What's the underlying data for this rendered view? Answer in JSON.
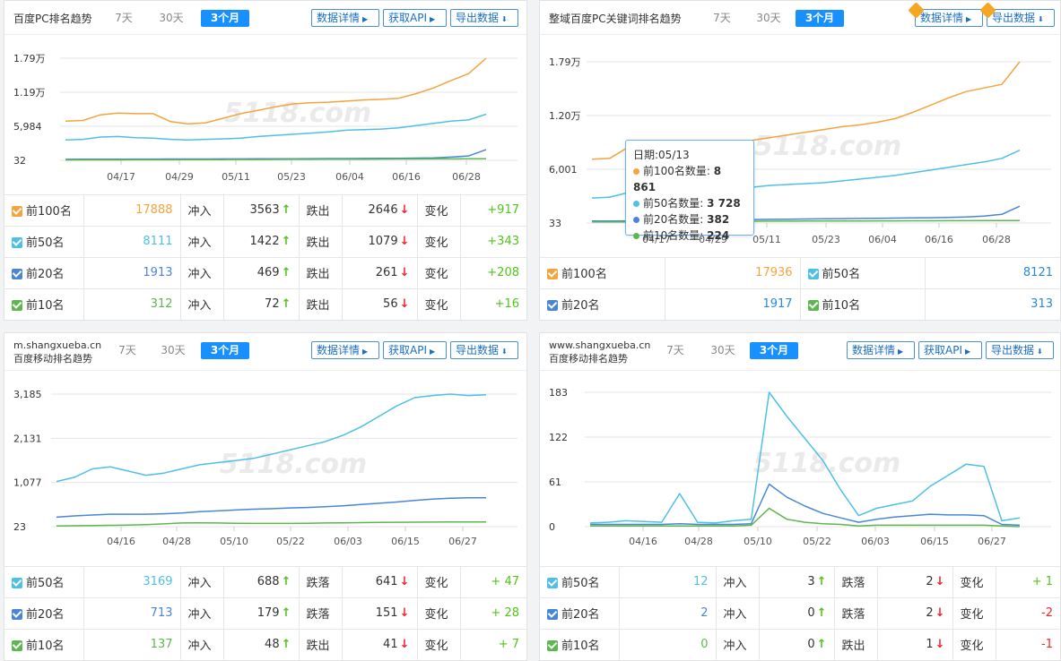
{
  "colors": {
    "top100": "#f5a33c",
    "top50": "#4ec0e6",
    "top20": "#4a86d8",
    "top10": "#5cb84e",
    "accent": "#1890ff"
  },
  "common": {
    "tabs": [
      "7天",
      "30天",
      "3个月"
    ],
    "btn_detail": "数据详情",
    "btn_api": "获取API",
    "btn_export": "导出数据",
    "watermark": "5118.com"
  },
  "panels": {
    "p1": {
      "title": "百度PC排名趋势",
      "rows": [
        {
          "label": "前100名",
          "value": "17888",
          "in_label": "冲入",
          "in": "3563",
          "out_label": "跌出",
          "out": "2646",
          "chg_label": "变化",
          "chg": "+917"
        },
        {
          "label": "前50名",
          "value": "8111",
          "in_label": "冲入",
          "in": "1422",
          "out_label": "跌出",
          "out": "1079",
          "chg_label": "变化",
          "chg": "+343"
        },
        {
          "label": "前20名",
          "value": "1913",
          "in_label": "冲入",
          "in": "469",
          "out_label": "跌出",
          "out": "261",
          "chg_label": "变化",
          "chg": "+208"
        },
        {
          "label": "前10名",
          "value": "312",
          "in_label": "冲入",
          "in": "72",
          "out_label": "跌出",
          "out": "56",
          "chg_label": "变化",
          "chg": "+16"
        }
      ]
    },
    "p2": {
      "title": "整域百度PC关键词排名趋势",
      "grid": [
        {
          "label": "前100名",
          "value": "17936"
        },
        {
          "label": "前50名",
          "value": "8121"
        },
        {
          "label": "前20名",
          "value": "1917"
        },
        {
          "label": "前10名",
          "value": "313"
        }
      ],
      "tooltip": {
        "date": "日期:05/13",
        "items": [
          {
            "label": "前100名数量:",
            "value": "8 861"
          },
          {
            "label": "前50名数量:",
            "value": "3 728"
          },
          {
            "label": "前20名数量:",
            "value": "382"
          },
          {
            "label": "前10名数量:",
            "value": "224"
          }
        ]
      }
    },
    "p3": {
      "title_line1": "m.shangxueba.cn",
      "title_line2": "百度移动排名趋势",
      "rows": [
        {
          "label": "前50名",
          "value": "3169",
          "in_label": "冲入",
          "in": "688",
          "out_label": "跌落",
          "out": "641",
          "chg_label": "变化",
          "chg": "+ 47"
        },
        {
          "label": "前20名",
          "value": "713",
          "in_label": "冲入",
          "in": "179",
          "out_label": "跌落",
          "out": "151",
          "chg_label": "变化",
          "chg": "+ 28"
        },
        {
          "label": "前10名",
          "value": "137",
          "in_label": "冲入",
          "in": "48",
          "out_label": "跌出",
          "out": "41",
          "chg_label": "变化",
          "chg": "+ 7"
        }
      ]
    },
    "p4": {
      "title_line1": "www.shangxueba.cn",
      "title_line2": "百度移动排名趋势",
      "rows": [
        {
          "label": "前50名",
          "value": "12",
          "in_label": "冲入",
          "in": "3",
          "out_label": "跌落",
          "out": "2",
          "chg_label": "变化",
          "chg": "+ 1"
        },
        {
          "label": "前20名",
          "value": "2",
          "in_label": "冲入",
          "in": "0",
          "out_label": "跌落",
          "out": "2",
          "chg_label": "变化",
          "chg": "-2"
        },
        {
          "label": "前10名",
          "value": "0",
          "in_label": "冲入",
          "in": "0",
          "out_label": "跌出",
          "out": "1",
          "chg_label": "变化",
          "chg": "-1"
        }
      ]
    }
  },
  "chart_data": [
    {
      "type": "line",
      "panel": "百度PC排名趋势",
      "ytick_labels": [
        "1.79万",
        "1.19万",
        "5,984",
        "32"
      ],
      "ytick_values": [
        17900,
        11900,
        5984,
        32
      ],
      "xtick_labels": [
        "04/17",
        "04/29",
        "05/11",
        "05/23",
        "06/04",
        "06/16",
        "06/28"
      ],
      "series": [
        {
          "key": "top100",
          "values": [
            6900,
            7000,
            8000,
            8300,
            8200,
            8200,
            6800,
            6400,
            6600,
            7400,
            8200,
            8800,
            9400,
            9900,
            10100,
            10200,
            10400,
            10600,
            10700,
            10900,
            11700,
            12700,
            14000,
            15200,
            17900
          ]
        },
        {
          "key": "top50",
          "values": [
            3600,
            3700,
            4100,
            4200,
            4000,
            3900,
            3700,
            3600,
            3700,
            3800,
            3900,
            4200,
            4400,
            4600,
            4800,
            5000,
            5300,
            5400,
            5500,
            5700,
            6100,
            6500,
            6900,
            7100,
            8100
          ]
        },
        {
          "key": "top20",
          "values": [
            200,
            220,
            230,
            240,
            250,
            250,
            260,
            260,
            270,
            280,
            290,
            300,
            310,
            320,
            330,
            340,
            350,
            360,
            380,
            400,
            420,
            450,
            600,
            800,
            1900
          ]
        },
        {
          "key": "top10",
          "values": [
            100,
            105,
            110,
            115,
            120,
            125,
            130,
            140,
            150,
            160,
            170,
            180,
            190,
            200,
            210,
            220,
            230,
            240,
            250,
            260,
            270,
            280,
            290,
            300,
            312
          ]
        }
      ]
    },
    {
      "type": "line",
      "panel": "整域百度PC关键词排名趋势",
      "ytick_labels": [
        "1.79万",
        "1.20万",
        "6,001",
        "33"
      ],
      "ytick_values": [
        17900,
        12000,
        6001,
        33
      ],
      "xtick_labels": [
        "04/17",
        "04/29",
        "05/11",
        "05/23",
        "06/04",
        "06/16",
        "06/28"
      ],
      "series": [
        {
          "key": "top100",
          "values": [
            7100,
            7200,
            8400,
            8400,
            8300,
            8200,
            8600,
            8861,
            9000,
            9200,
            9500,
            9800,
            10100,
            10400,
            10700,
            10900,
            11200,
            11600,
            12300,
            13100,
            13900,
            14600,
            15000,
            15400,
            17900
          ]
        },
        {
          "key": "top50",
          "values": [
            2800,
            2900,
            3400,
            3500,
            3500,
            3500,
            3600,
            3728,
            3900,
            4000,
            4200,
            4300,
            4400,
            4500,
            4700,
            4900,
            5100,
            5300,
            5600,
            5900,
            6200,
            6500,
            6800,
            7200,
            8100
          ]
        },
        {
          "key": "top20",
          "values": [
            250,
            260,
            270,
            280,
            290,
            300,
            340,
            382,
            400,
            420,
            440,
            460,
            480,
            500,
            520,
            540,
            560,
            580,
            600,
            620,
            650,
            700,
            800,
            1000,
            1900
          ]
        },
        {
          "key": "top10",
          "values": [
            150,
            155,
            165,
            175,
            185,
            195,
            210,
            224,
            230,
            235,
            240,
            245,
            250,
            255,
            260,
            265,
            270,
            275,
            280,
            285,
            290,
            295,
            300,
            305,
            313
          ]
        }
      ]
    },
    {
      "type": "line",
      "panel": "m.shangxueba.cn 百度移动排名趋势",
      "ytick_labels": [
        "3,185",
        "2,131",
        "1,077",
        "23"
      ],
      "ytick_values": [
        3185,
        2131,
        1077,
        23
      ],
      "xtick_labels": [
        "04/16",
        "04/28",
        "05/10",
        "05/22",
        "06/03",
        "06/15",
        "06/27"
      ],
      "series": [
        {
          "key": "top50",
          "values": [
            1100,
            1200,
            1400,
            1450,
            1350,
            1250,
            1300,
            1400,
            1500,
            1550,
            1600,
            1650,
            1750,
            1850,
            1950,
            2050,
            2200,
            2400,
            2650,
            2900,
            3100,
            3150,
            3185,
            3150,
            3169
          ]
        },
        {
          "key": "top20",
          "values": [
            250,
            280,
            300,
            320,
            320,
            320,
            330,
            350,
            380,
            400,
            420,
            440,
            450,
            470,
            480,
            500,
            520,
            550,
            580,
            610,
            650,
            680,
            700,
            710,
            713
          ]
        },
        {
          "key": "top10",
          "values": [
            40,
            45,
            50,
            55,
            60,
            70,
            90,
            110,
            115,
            110,
            105,
            100,
            100,
            100,
            105,
            110,
            115,
            120,
            125,
            128,
            130,
            132,
            134,
            136,
            137
          ]
        }
      ]
    },
    {
      "type": "line",
      "panel": "www.shangxueba.cn 百度移动排名趋势",
      "ytick_labels": [
        "183",
        "122",
        "61",
        "0"
      ],
      "ytick_values": [
        183,
        122,
        61,
        0
      ],
      "xtick_labels": [
        "04/16",
        "04/28",
        "05/10",
        "05/22",
        "06/03",
        "06/15",
        "06/27"
      ],
      "series": [
        {
          "key": "top50",
          "values": [
            5,
            6,
            8,
            7,
            6,
            45,
            6,
            5,
            8,
            10,
            183,
            150,
            120,
            90,
            50,
            15,
            25,
            30,
            35,
            55,
            70,
            85,
            82,
            8,
            12
          ]
        },
        {
          "key": "top20",
          "values": [
            3,
            3,
            3,
            3,
            3,
            4,
            3,
            3,
            3,
            4,
            58,
            40,
            28,
            18,
            12,
            6,
            10,
            13,
            15,
            17,
            16,
            16,
            15,
            3,
            2
          ]
        },
        {
          "key": "top10",
          "values": [
            1,
            1,
            1,
            1,
            1,
            1,
            1,
            1,
            1,
            2,
            25,
            10,
            6,
            4,
            3,
            1,
            2,
            2,
            2,
            2,
            2,
            2,
            2,
            1,
            0
          ]
        }
      ]
    }
  ]
}
